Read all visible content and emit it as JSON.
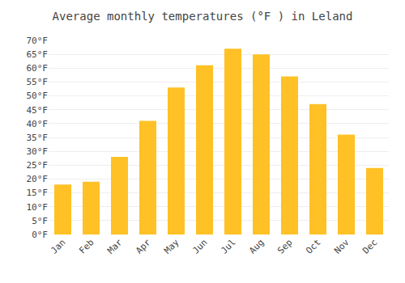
{
  "chart_data": {
    "type": "bar",
    "title": "Average monthly temperatures (°F ) in Leland",
    "categories": [
      "Jan",
      "Feb",
      "Mar",
      "Apr",
      "May",
      "Jun",
      "Jul",
      "Aug",
      "Sep",
      "Oct",
      "Nov",
      "Dec"
    ],
    "values": [
      18,
      19,
      28,
      41,
      53,
      61,
      67,
      65,
      57,
      47,
      36,
      24
    ],
    "color": "#FFC125",
    "ylim": [
      0,
      70
    ],
    "yticks": [
      {
        "value": 0,
        "label": "0°F"
      },
      {
        "value": 5,
        "label": "5°F"
      },
      {
        "value": 10,
        "label": "10°F"
      },
      {
        "value": 15,
        "label": "15°F"
      },
      {
        "value": 20,
        "label": "20°F"
      },
      {
        "value": 25,
        "label": "25°F"
      },
      {
        "value": 30,
        "label": "30°F"
      },
      {
        "value": 35,
        "label": "35°F"
      },
      {
        "value": 40,
        "label": "40°F"
      },
      {
        "value": 45,
        "label": "45°F"
      },
      {
        "value": 50,
        "label": "50°F"
      },
      {
        "value": 55,
        "label": "55°F"
      },
      {
        "value": 60,
        "label": "60°F"
      },
      {
        "value": 65,
        "label": "65°F"
      },
      {
        "value": 70,
        "label": "70°F"
      }
    ],
    "grid": true
  }
}
